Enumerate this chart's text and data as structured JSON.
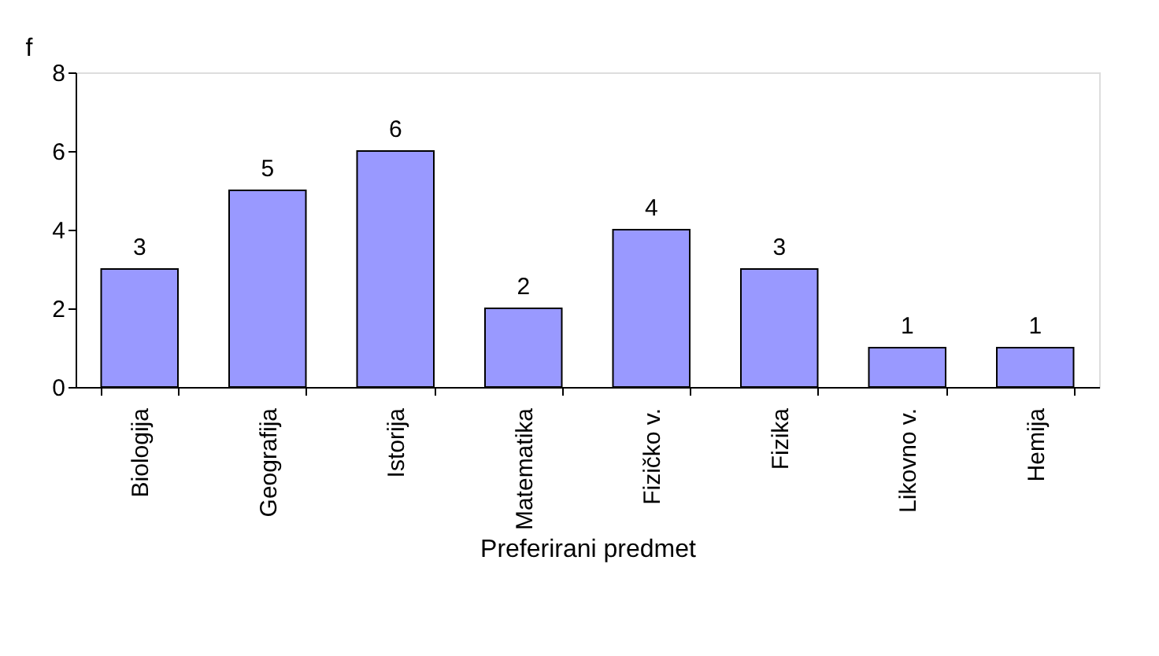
{
  "chart_data": {
    "type": "bar",
    "xlabel": "Preferirani predmet",
    "ylabel": "f",
    "categories": [
      "Biologija",
      "Geografija",
      "Istorija",
      "Matematika",
      "Fizičko v.",
      "Fizika",
      "Likovno v.",
      "Hemija"
    ],
    "values": [
      3,
      5,
      6,
      2,
      4,
      3,
      1,
      1
    ],
    "color": "#9999ff",
    "ylim": [
      0,
      8
    ],
    "yticks": [
      0,
      2,
      4,
      6,
      8
    ],
    "grid": false,
    "data_labels": true
  }
}
